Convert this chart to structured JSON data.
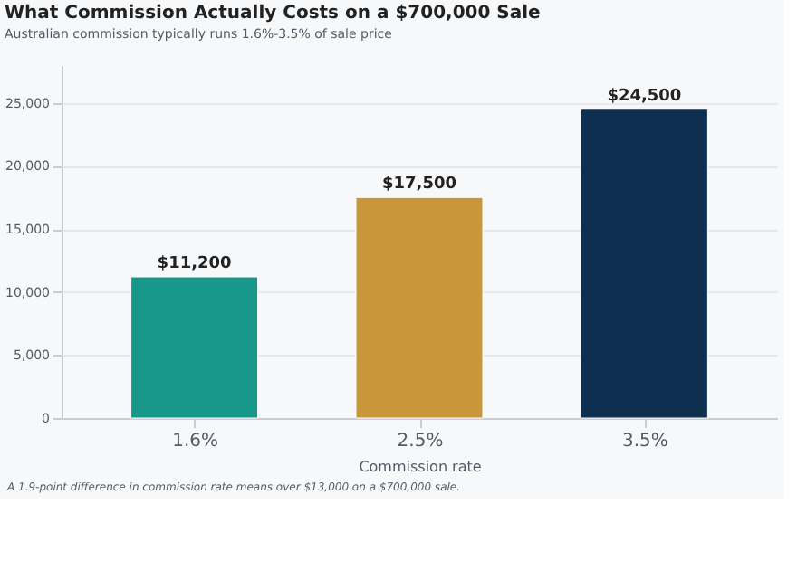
{
  "chart_data": {
    "type": "bar",
    "title": "What Commission Actually Costs on a $700,000 Sale",
    "subtitle": "Australian commission typically runs 1.6%-3.5% of sale price",
    "xlabel": "Commission rate",
    "categories": [
      "1.6%",
      "2.5%",
      "3.5%"
    ],
    "values": [
      11200,
      17500,
      24500
    ],
    "colors": [
      "#16978a",
      "#c9973a",
      "#0e2f4f"
    ],
    "value_labels": [
      "$11,200",
      "$17,500",
      "$24,500"
    ],
    "ylim": [
      0,
      28000
    ],
    "yticks": [
      0,
      {
        "value": 5000,
        "label": "5,000"
      },
      {
        "value": 10000,
        "label": "10,000"
      },
      {
        "value": 15000,
        "label": "15,000"
      },
      {
        "value": 20000,
        "label": "20,000"
      },
      {
        "value": 25000,
        "label": "25,000"
      }
    ],
    "grid": "y",
    "annotations": [
      "A 1.9-point difference in commission rate means over $13,000 on a $700,000 sale."
    ]
  }
}
